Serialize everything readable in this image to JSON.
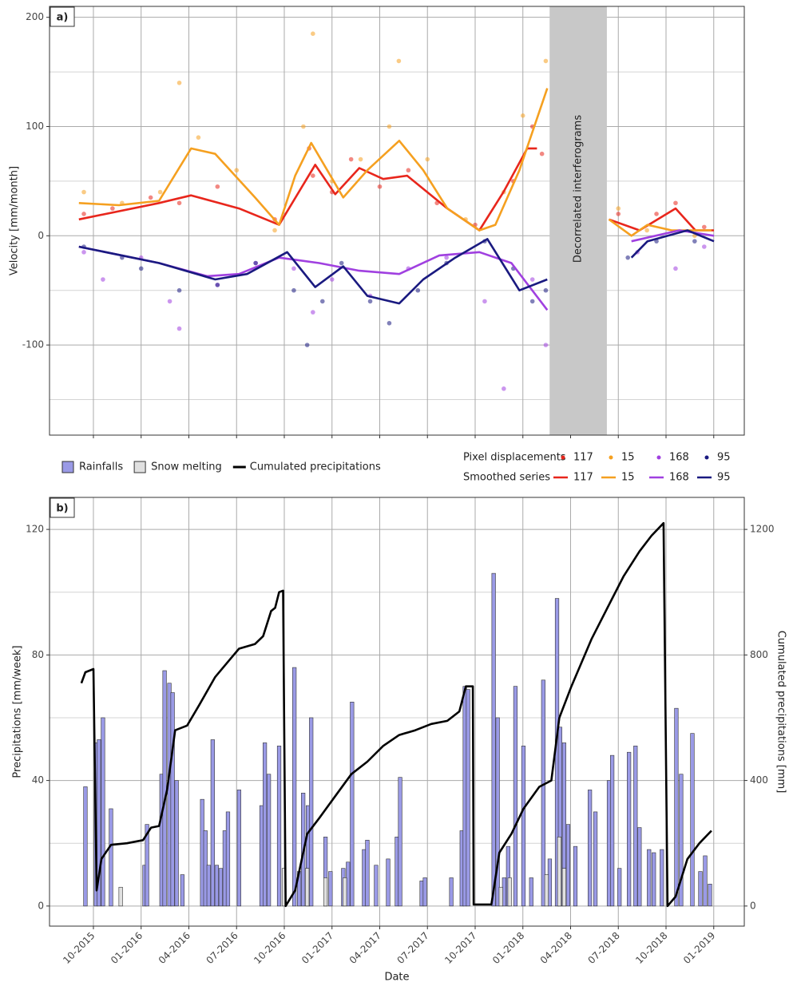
{
  "chart_data": [
    {
      "type": "line",
      "panel_label": "a)",
      "y_label": "Velocity [mm/month]",
      "xlim": [
        2015.52,
        2019.16
      ],
      "xticks": [
        2015.75,
        2016.0,
        2016.25,
        2016.5,
        2016.75,
        2017.0,
        2017.25,
        2017.5,
        2017.75,
        2018.0,
        2018.25,
        2018.5,
        2018.75,
        2019.0
      ],
      "ylim": [
        -182.5,
        210
      ],
      "yticks": [
        -100,
        0,
        100,
        200
      ],
      "y_minor_ticks": [
        -150,
        -50,
        50,
        150
      ],
      "grid": true,
      "annotation": {
        "text": "Decorrelated interferograms",
        "x_range": [
          2018.14,
          2018.44
        ]
      },
      "legend_position": "bottom-right",
      "point_legend_title": "Pixel displacements",
      "line_legend_title": "Smoothed series",
      "series": [
        {
          "name": "117",
          "type": "scatter",
          "color": "#e8261c",
          "x": [
            2015.7,
            2015.85,
            2016.05,
            2016.2,
            2016.4,
            2016.7,
            2016.88,
            2016.9,
            2017.0,
            2017.1,
            2017.25,
            2017.4,
            2017.55,
            2017.75,
            2017.95,
            2018.05,
            2018.1,
            2018.5,
            2018.7,
            2018.8,
            2018.95
          ],
          "values": [
            20,
            25,
            35,
            30,
            45,
            15,
            80,
            55,
            40,
            70,
            45,
            60,
            30,
            10,
            50,
            100,
            75,
            20,
            20,
            30,
            8
          ]
        },
        {
          "name": "15",
          "type": "scatter",
          "color": "#f5a020",
          "x": [
            2015.7,
            2015.9,
            2016.1,
            2016.2,
            2016.3,
            2016.5,
            2016.7,
            2016.85,
            2016.9,
            2017.0,
            2017.15,
            2017.3,
            2017.35,
            2017.5,
            2017.7,
            2017.9,
            2018.0,
            2018.12,
            2018.5,
            2018.65,
            2018.9
          ],
          "values": [
            40,
            30,
            40,
            140,
            90,
            60,
            5,
            100,
            185,
            50,
            70,
            100,
            160,
            70,
            15,
            40,
            110,
            160,
            25,
            5,
            0
          ]
        },
        {
          "name": "168",
          "type": "scatter",
          "color": "#a040e0",
          "x": [
            2015.7,
            2015.8,
            2016.0,
            2016.15,
            2016.2,
            2016.4,
            2016.6,
            2016.8,
            2016.9,
            2017.0,
            2017.2,
            2017.4,
            2017.6,
            2017.8,
            2017.9,
            2018.05,
            2018.12,
            2018.6,
            2018.8,
            2018.95
          ],
          "values": [
            -15,
            -40,
            -20,
            -60,
            -85,
            -45,
            -25,
            -30,
            -70,
            -40,
            -55,
            -30,
            -20,
            -60,
            -140,
            -40,
            -100,
            -15,
            -30,
            -10
          ]
        },
        {
          "name": "95",
          "type": "scatter",
          "color": "#1a1a80",
          "x": [
            2015.7,
            2015.9,
            2016.0,
            2016.2,
            2016.4,
            2016.6,
            2016.8,
            2016.87,
            2016.95,
            2017.05,
            2017.2,
            2017.3,
            2017.45,
            2017.6,
            2017.8,
            2017.95,
            2018.05,
            2018.12,
            2018.55,
            2018.7,
            2018.9
          ],
          "values": [
            -10,
            -20,
            -30,
            -50,
            -45,
            -25,
            -50,
            -100,
            -60,
            -25,
            -60,
            -80,
            -50,
            -25,
            -5,
            -30,
            -60,
            -50,
            -20,
            -5,
            -5
          ]
        },
        {
          "name": "117",
          "type": "line",
          "color": "#e8261c",
          "x": [
            2015.674,
            2016.094,
            2016.262,
            2016.513,
            2016.723,
            2016.912,
            2017.017,
            2017.143,
            2017.268,
            2017.394,
            2017.604,
            2017.772,
            2017.898,
            2018.023,
            2018.074,
            2018.29,
            2018.451,
            2018.611,
            2018.8,
            2018.904,
            2019.001
          ],
          "values": [
            15,
            30,
            37,
            25,
            10,
            65,
            38,
            62,
            52,
            55,
            25,
            5,
            40,
            80,
            80,
            null,
            15,
            5,
            25,
            5,
            5
          ]
        },
        {
          "name": "15",
          "type": "line",
          "color": "#f5a020",
          "x": [
            2015.674,
            2015.884,
            2016.094,
            2016.262,
            2016.388,
            2016.597,
            2016.723,
            2016.807,
            2016.891,
            2016.975,
            2017.059,
            2017.185,
            2017.352,
            2017.478,
            2017.604,
            2017.772,
            2017.856,
            2017.982,
            2018.128,
            2018.29,
            2018.451,
            2018.569,
            2018.653,
            2018.779,
            2018.904,
            2018.988
          ],
          "values": [
            30,
            28,
            32,
            80,
            75,
            35,
            10,
            55,
            85,
            60,
            35,
            60,
            87,
            60,
            25,
            5,
            10,
            60,
            135,
            null,
            15,
            0,
            10,
            5,
            5,
            5
          ]
        },
        {
          "name": "168",
          "type": "line",
          "color": "#a040e0",
          "x": [
            2015.674,
            2016.094,
            2016.346,
            2016.513,
            2016.723,
            2016.933,
            2017.143,
            2017.352,
            2017.562,
            2017.772,
            2017.94,
            2018.128,
            2018.29,
            2018.569,
            2018.82,
            2019.001
          ],
          "values": [
            -10,
            -25,
            -37,
            -35,
            -20,
            -25,
            -32,
            -35,
            -18,
            -15,
            -25,
            -68,
            null,
            -5,
            5,
            0
          ]
        },
        {
          "name": "95",
          "type": "line",
          "color": "#1a1a80",
          "x": [
            2015.674,
            2016.094,
            2016.388,
            2016.555,
            2016.765,
            2016.912,
            2017.059,
            2017.185,
            2017.352,
            2017.478,
            2017.646,
            2017.814,
            2017.982,
            2018.128,
            2018.29,
            2018.569,
            2018.653,
            2018.862,
            2019.001
          ],
          "values": [
            -10,
            -25,
            -40,
            -35,
            -15,
            -47,
            -28,
            -55,
            -62,
            -40,
            -20,
            -3,
            -50,
            -40,
            null,
            -20,
            -5,
            5,
            -5
          ]
        }
      ]
    },
    {
      "type": "bar",
      "panel_label": "b)",
      "x_label": "Date",
      "y_label": "Precipitations [mm/week]",
      "y2_label": "Cumulated precipitations [mm]",
      "xlim": [
        2015.52,
        2019.16
      ],
      "xticks": [
        {
          "value": 2015.75,
          "label": "10-2015"
        },
        {
          "value": 2016.0,
          "label": "01-2016"
        },
        {
          "value": 2016.25,
          "label": "04-2016"
        },
        {
          "value": 2016.5,
          "label": "07-2016"
        },
        {
          "value": 2016.75,
          "label": "10-2016"
        },
        {
          "value": 2017.0,
          "label": "01-2017"
        },
        {
          "value": 2017.25,
          "label": "04-2017"
        },
        {
          "value": 2017.5,
          "label": "07-2017"
        },
        {
          "value": 2017.75,
          "label": "10-2017"
        },
        {
          "value": 2018.0,
          "label": "01-2018"
        },
        {
          "value": 2018.25,
          "label": "04-2018"
        },
        {
          "value": 2018.5,
          "label": "07-2018"
        },
        {
          "value": 2018.75,
          "label": "10-2018"
        },
        {
          "value": 2019.0,
          "label": "01-2019"
        }
      ],
      "ylim": [
        -6.4,
        130.2
      ],
      "yticks": [
        0,
        40,
        80,
        120
      ],
      "y_minor_ticks": [
        20,
        60,
        100
      ],
      "y2lim": [
        -64,
        1302
      ],
      "y2ticks": [
        0,
        400,
        800,
        1200
      ],
      "grid": true,
      "legend_position": "top-left",
      "series": [
        {
          "name": "Rainfalls",
          "type": "bar",
          "color": "#9a9ae6",
          "x": [
            2015.708,
            2015.763,
            2015.779,
            2015.8,
            2015.842,
            2016.018,
            2016.031,
            2016.107,
            2016.123,
            2016.148,
            2016.165,
            2016.186,
            2016.216,
            2016.32,
            2016.337,
            2016.354,
            2016.375,
            2016.396,
            2016.417,
            2016.438,
            2016.455,
            2016.513,
            2016.631,
            2016.648,
            2016.669,
            2016.723,
            2016.803,
            2016.828,
            2016.849,
            2016.874,
            2016.891,
            2016.966,
            2016.992,
            2017.059,
            2017.084,
            2017.105,
            2017.168,
            2017.185,
            2017.231,
            2017.294,
            2017.34,
            2017.357,
            2017.47,
            2017.487,
            2017.625,
            2017.68,
            2017.696,
            2017.713,
            2017.847,
            2017.868,
            2017.902,
            2017.923,
            2017.961,
            2018.003,
            2018.044,
            2018.107,
            2018.141,
            2018.179,
            2018.195,
            2018.216,
            2018.237,
            2018.275,
            2018.351,
            2018.38,
            2018.451,
            2018.468,
            2018.506,
            2018.556,
            2018.59,
            2018.611,
            2018.661,
            2018.686,
            2018.728,
            2018.804,
            2018.829,
            2018.888,
            2018.93,
            2018.955,
            2018.98
          ],
          "values": [
            38,
            52,
            53,
            60,
            31,
            13,
            26,
            42,
            75,
            71,
            68,
            40,
            10,
            34,
            24,
            13,
            53,
            13,
            12,
            24,
            30,
            37,
            32,
            52,
            42,
            51,
            76,
            11,
            36,
            32,
            60,
            22,
            11,
            12,
            14,
            65,
            18,
            21,
            13,
            15,
            22,
            41,
            8,
            9,
            9,
            24,
            70,
            69,
            106,
            60,
            9,
            19,
            70,
            51,
            9,
            72,
            15,
            98,
            57,
            52,
            26,
            19,
            37,
            30,
            40,
            48,
            12,
            49,
            51,
            25,
            18,
            17,
            18,
            63,
            42,
            55,
            11,
            16,
            7
          ]
        },
        {
          "name": "Snow melting",
          "type": "bar",
          "color": "#e0e0e0",
          "x": [
            2015.893,
            2016.748,
            2016.87,
            2016.966,
            2017.067,
            2017.885,
            2017.931,
            2018.124,
            2018.191,
            2018.216
          ],
          "values": [
            6,
            12,
            12,
            9,
            9,
            6,
            9,
            10,
            22,
            12
          ]
        },
        {
          "name": "Cumulated precipitations",
          "type": "line",
          "axis": "y2",
          "color": "#000000",
          "x": [
            2015.687,
            2015.708,
            2015.75,
            2015.767,
            2015.792,
            2015.842,
            2015.926,
            2016.01,
            2016.052,
            2016.094,
            2016.136,
            2016.178,
            2016.241,
            2016.304,
            2016.388,
            2016.471,
            2016.513,
            2016.597,
            2016.639,
            2016.681,
            2016.702,
            2016.723,
            2016.744,
            2016.757,
            2016.807,
            2016.87,
            2016.933,
            2017.017,
            2017.101,
            2017.185,
            2017.268,
            2017.352,
            2017.436,
            2017.52,
            2017.604,
            2017.667,
            2017.701,
            2017.738,
            2017.742,
            2017.835,
            2017.877,
            2017.94,
            2018.003,
            2018.086,
            2018.149,
            2018.191,
            2018.254,
            2018.359,
            2018.443,
            2018.527,
            2018.611,
            2018.674,
            2018.737,
            2018.758,
            2018.8,
            2018.862,
            2018.925,
            2018.988
          ],
          "values": [
            710,
            745,
            755,
            50,
            150,
            195,
            200,
            210,
            250,
            255,
            370,
            560,
            575,
            640,
            730,
            790,
            820,
            835,
            860,
            940,
            950,
            1000,
            1005,
            0,
            50,
            230,
            280,
            350,
            420,
            460,
            510,
            545,
            560,
            580,
            590,
            620,
            700,
            700,
            5,
            5,
            170,
            230,
            310,
            380,
            400,
            600,
            700,
            850,
            950,
            1050,
            1130,
            1180,
            1220,
            0,
            30,
            150,
            200,
            240
          ]
        }
      ]
    }
  ]
}
